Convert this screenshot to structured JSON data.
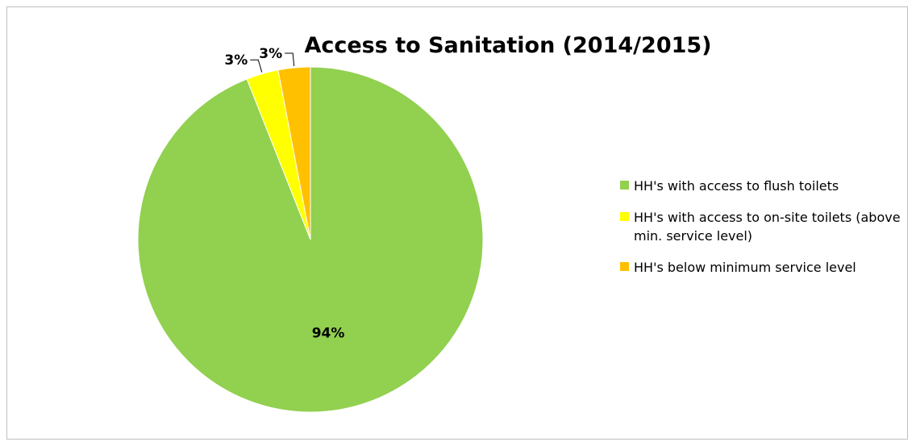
{
  "chart_data": {
    "type": "pie",
    "title": "Access to Sanitation (2014/2015)",
    "start_angle_deg": 0,
    "direction": "clockwise",
    "legend_position": "right",
    "series": [
      {
        "name": "HH's with access to flush toilets",
        "value": 94,
        "label": "94%",
        "color": "#92d050"
      },
      {
        "name": "HH's with access to on-site toilets (above min. service level)",
        "value": 3,
        "label": "3%",
        "color": "#ffff00"
      },
      {
        "name": "HH's below minimum service level",
        "value": 3,
        "label": "3%",
        "color": "#ffc000"
      }
    ]
  }
}
